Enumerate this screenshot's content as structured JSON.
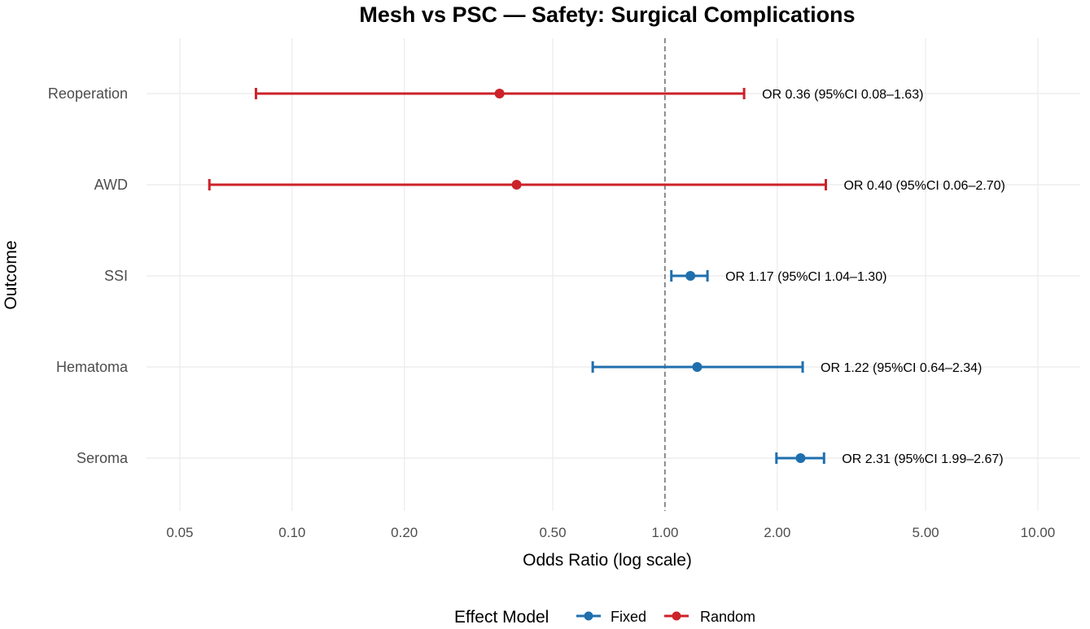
{
  "chart_data": {
    "type": "forest",
    "title": "Mesh vs PSC — Safety: Surgical Complications",
    "xlabel": "Odds Ratio (log scale)",
    "ylabel": "Outcome",
    "x_scale": "log10",
    "xlim": [
      0.0407,
      12.99
    ],
    "x_ticks": [
      0.05,
      0.1,
      0.2,
      0.5,
      1,
      2,
      5,
      10
    ],
    "x_tick_labels": [
      "0.05",
      "0.10",
      "0.20",
      "0.50",
      "1.00",
      "2.00",
      "5.00",
      "10.00"
    ],
    "reference_line": 1,
    "grid": true,
    "categories": [
      "Reoperation",
      "AWD",
      "SSI",
      "Hematoma",
      "Seroma"
    ],
    "rows": [
      {
        "outcome": "Reoperation",
        "or": 0.36,
        "lower": 0.08,
        "upper": 1.63,
        "model": "Random",
        "label": "OR 0.36 (95%CI 0.08–1.63)"
      },
      {
        "outcome": "AWD",
        "or": 0.4,
        "lower": 0.06,
        "upper": 2.7,
        "model": "Random",
        "label": "OR 0.40 (95%CI 0.06–2.70)"
      },
      {
        "outcome": "SSI",
        "or": 1.17,
        "lower": 1.04,
        "upper": 1.3,
        "model": "Fixed",
        "label": "OR 1.17 (95%CI 1.04–1.30)"
      },
      {
        "outcome": "Hematoma",
        "or": 1.22,
        "lower": 0.64,
        "upper": 2.34,
        "model": "Fixed",
        "label": "OR 1.22 (95%CI 0.64–2.34)"
      },
      {
        "outcome": "Seroma",
        "or": 2.31,
        "lower": 1.99,
        "upper": 2.67,
        "model": "Fixed",
        "label": "OR 2.31 (95%CI 1.99–2.67)"
      }
    ],
    "legend": {
      "title": "Effect Model",
      "position": "bottom",
      "entries": [
        {
          "name": "Fixed",
          "color": "#1f6fae"
        },
        {
          "name": "Random",
          "color": "#cc2229"
        }
      ]
    },
    "colors": {
      "Fixed": "#1f6fae",
      "Random": "#cc2229",
      "grid": "#ebebeb",
      "reference_line": "#555555"
    }
  }
}
